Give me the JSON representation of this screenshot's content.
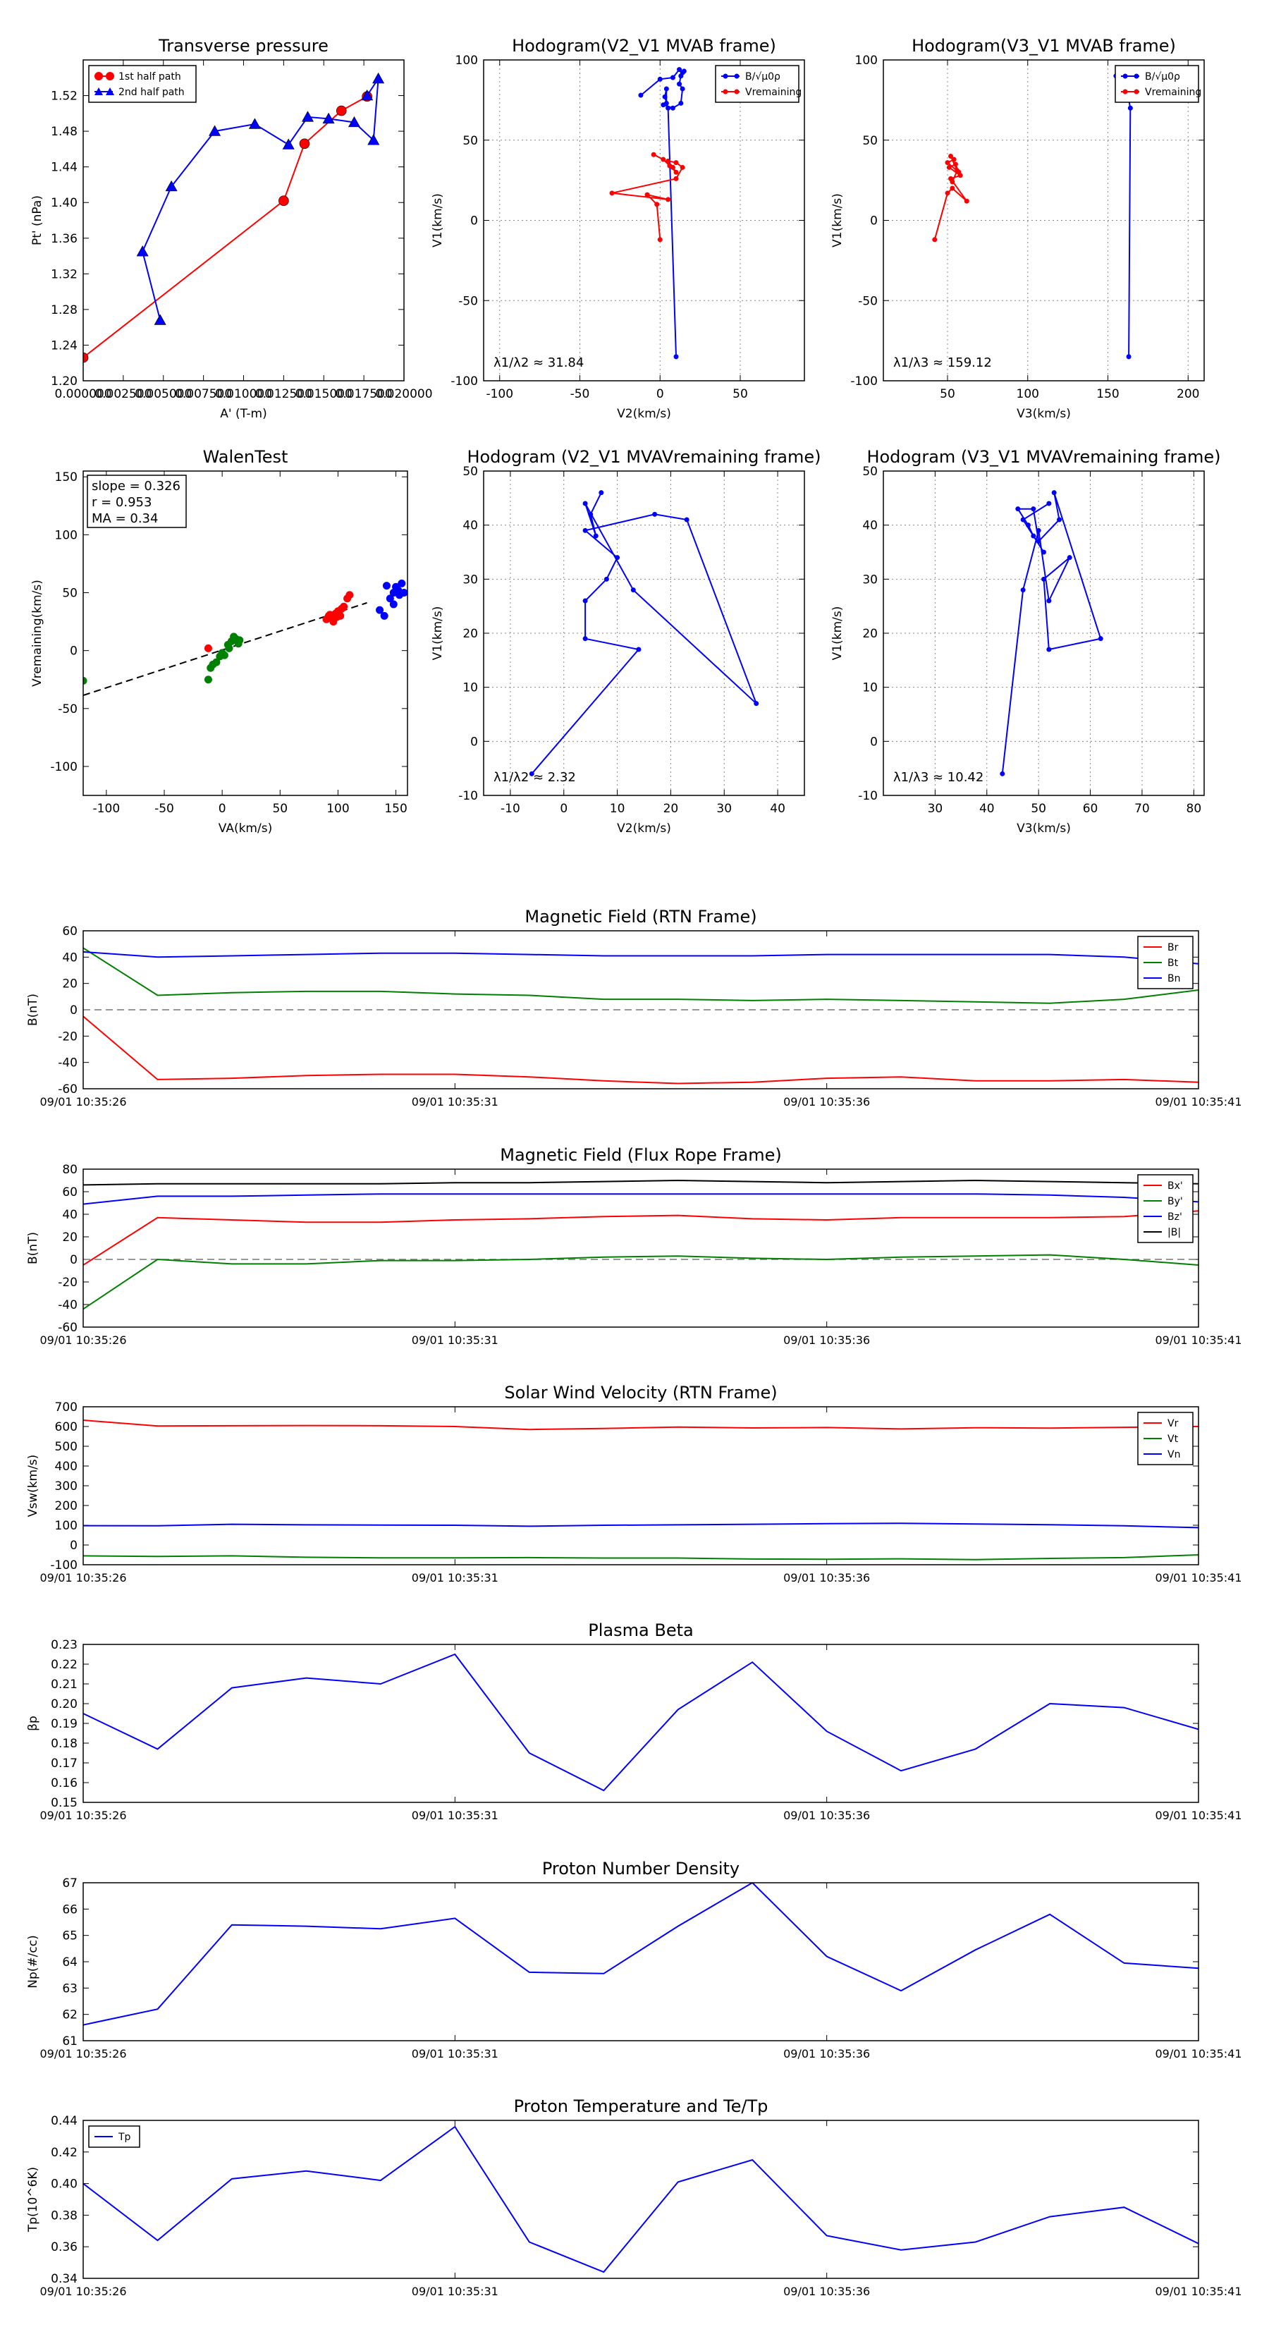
{
  "colors": {
    "red": "#ff0000",
    "green": "#008000",
    "blue": "#0000ff",
    "black": "#000000",
    "grid": "#888888"
  },
  "chart_data": [
    {
      "id": "tp",
      "type": "scatter",
      "title": "Transverse pressure",
      "xlabel": "A' (T-m)",
      "ylabel": "Pt' (nPa)",
      "xlim": [
        0,
        0.02
      ],
      "ylim": [
        1.2,
        1.56
      ],
      "xticks": [
        "0.000000",
        "0.002500",
        "0.005000",
        "0.007500",
        "0.010000",
        "0.012500",
        "0.015000",
        "0.017500",
        "0.020000"
      ],
      "yticks": [
        "1.20",
        "1.24",
        "1.28",
        "1.32",
        "1.36",
        "1.40",
        "1.44",
        "1.48",
        "1.52"
      ],
      "legend": {
        "loc": "top-left",
        "entries": [
          "1st half path",
          "2nd half path"
        ]
      },
      "series": [
        {
          "name": "1st half path",
          "color": "red",
          "marker": "circle",
          "x": [
            0.0,
            0.0125,
            0.0138,
            0.0161,
            0.0177
          ],
          "y": [
            1.226,
            1.402,
            1.466,
            1.503,
            1.519
          ]
        },
        {
          "name": "2nd half path",
          "color": "blue",
          "marker": "triangle",
          "x": [
            0.0048,
            0.0037,
            0.0055,
            0.0082,
            0.0107,
            0.0128,
            0.014,
            0.0153,
            0.0169,
            0.0181,
            0.0184,
            0.0177
          ],
          "y": [
            1.268,
            1.345,
            1.418,
            1.48,
            1.488,
            1.465,
            1.496,
            1.494,
            1.49,
            1.47,
            1.539,
            1.52
          ]
        }
      ]
    },
    {
      "id": "h1",
      "type": "line",
      "title": "Hodogram(V2_V1 MVAB frame)",
      "xlabel": "V2(km/s)",
      "ylabel": "V1(km/s)",
      "xlim": [
        -110,
        90
      ],
      "ylim": [
        -100,
        100
      ],
      "xticks": [
        "-100",
        "-50",
        "0",
        "50"
      ],
      "yticks": [
        "-100",
        "-50",
        "0",
        "50",
        "100"
      ],
      "annotation": "λ1/λ2 ≈ 31.84",
      "legend": {
        "loc": "top-right",
        "entries": [
          "B/√μ0ρ",
          "Vremaining"
        ]
      },
      "series": [
        {
          "name": "B/√μ0ρ",
          "color": "blue",
          "x": [
            10,
            5,
            3,
            4,
            4,
            2,
            8,
            13,
            14,
            12,
            13,
            15,
            14,
            12,
            8,
            0,
            -12
          ],
          "y": [
            -85,
            70,
            77,
            82,
            73,
            72,
            70,
            73,
            82,
            85,
            90,
            93,
            92,
            94,
            89,
            88,
            78
          ]
        },
        {
          "name": "Vremaining",
          "color": "red",
          "x": [
            0,
            -2,
            -8,
            5,
            -30,
            10,
            14,
            10,
            5,
            6,
            8,
            10,
            2,
            -4
          ],
          "y": [
            -12,
            10,
            16,
            13,
            17,
            26,
            33,
            36,
            37,
            34,
            33,
            30,
            38,
            41
          ]
        }
      ]
    },
    {
      "id": "h2",
      "type": "line",
      "title": "Hodogram(V3_V1 MVAB frame)",
      "xlabel": "V3(km/s)",
      "ylabel": "V1(km/s)",
      "xlim": [
        10,
        210
      ],
      "ylim": [
        -100,
        100
      ],
      "xticks": [
        "50",
        "100",
        "150",
        "200"
      ],
      "yticks": [
        "-100",
        "-50",
        "0",
        "50",
        "100"
      ],
      "annotation": "λ1/λ3 ≈ 159.12",
      "legend": {
        "loc": "top-right",
        "entries": [
          "B/√μ0ρ",
          "Vremaining"
        ]
      },
      "series": [
        {
          "name": "B/√μ0ρ",
          "color": "blue",
          "x": [
            163,
            164,
            163,
            162,
            160,
            163,
            165,
            163,
            160,
            158,
            162,
            155
          ],
          "y": [
            -85,
            70,
            75,
            80,
            85,
            88,
            90,
            93,
            92,
            89,
            87,
            90
          ]
        },
        {
          "name": "Vremaining",
          "color": "red",
          "x": [
            42,
            50,
            53,
            62,
            52,
            58,
            51,
            55,
            57,
            50,
            54,
            52,
            56,
            53
          ],
          "y": [
            -12,
            17,
            20,
            12,
            26,
            28,
            33,
            35,
            30,
            36,
            38,
            40,
            31,
            24
          ]
        }
      ]
    },
    {
      "id": "walen",
      "type": "scatter",
      "title": "WalenTest",
      "xlabel": "VA(km/s)",
      "ylabel": "Vremaining(km/s)",
      "xlim": [
        -120,
        160
      ],
      "ylim": [
        -125,
        155
      ],
      "xticks": [
        "-100",
        "-50",
        "0",
        "50",
        "100",
        "150"
      ],
      "yticks": [
        "-100",
        "-50",
        "0",
        "50",
        "100",
        "150"
      ],
      "stats": [
        "slope = 0.326",
        "r = 0.953",
        "MA = 0.34"
      ],
      "fit": {
        "slope": 0.326,
        "intercept": 0.5
      },
      "series": [
        {
          "name": "green",
          "color": "green",
          "x": [
            -120,
            -12,
            -10,
            -5,
            0,
            5,
            8,
            10,
            12,
            15,
            -2,
            2,
            -8,
            6,
            14
          ],
          "y": [
            -26,
            -25,
            -15,
            -10,
            -2,
            5,
            8,
            12,
            10,
            9,
            -5,
            -4,
            -12,
            2,
            6
          ]
        },
        {
          "name": "red",
          "color": "red",
          "x": [
            -12,
            90,
            92,
            95,
            98,
            100,
            102,
            105,
            108,
            96,
            103,
            110,
            99,
            93
          ],
          "y": [
            2,
            27,
            30,
            28,
            32,
            34,
            30,
            38,
            45,
            25,
            36,
            48,
            29,
            31
          ]
        },
        {
          "name": "blue",
          "color": "blue",
          "x": [
            136,
            140,
            145,
            148,
            150,
            152,
            155,
            148,
            153,
            142,
            157
          ],
          "y": [
            35,
            30,
            45,
            50,
            55,
            52,
            58,
            40,
            48,
            56,
            50
          ]
        }
      ]
    },
    {
      "id": "h3",
      "type": "line",
      "title": "Hodogram (V2_V1 MVAVremaining frame)",
      "xlabel": "V2(km/s)",
      "ylabel": "V1(km/s)",
      "xlim": [
        -15,
        45
      ],
      "ylim": [
        -10,
        50
      ],
      "xticks": [
        "-10",
        "0",
        "10",
        "20",
        "30",
        "40"
      ],
      "yticks": [
        "-10",
        "0",
        "10",
        "20",
        "30",
        "40",
        "50"
      ],
      "annotation": "λ1/λ2 ≈ 2.32",
      "series": [
        {
          "name": "V",
          "color": "blue",
          "x": [
            -6,
            14,
            4,
            4,
            8,
            10,
            4,
            17,
            23,
            36,
            13,
            4,
            6,
            5,
            7
          ],
          "y": [
            -6,
            17,
            19,
            26,
            30,
            34,
            39,
            42,
            41,
            7,
            28,
            44,
            38,
            42,
            46
          ]
        }
      ]
    },
    {
      "id": "h4",
      "type": "line",
      "title": "Hodogram (V3_V1 MVAVremaining frame)",
      "xlabel": "V3(km/s)",
      "ylabel": "V1(km/s)",
      "xlim": [
        20,
        82
      ],
      "ylim": [
        -10,
        50
      ],
      "xticks": [
        "30",
        "40",
        "50",
        "60",
        "70",
        "80"
      ],
      "yticks": [
        "-10",
        "0",
        "10",
        "20",
        "30",
        "40",
        "50"
      ],
      "annotation": "λ1/λ3 ≈ 10.42",
      "series": [
        {
          "name": "V",
          "color": "blue",
          "x": [
            43,
            47,
            50,
            52,
            56,
            51,
            52,
            62,
            53,
            54,
            50,
            49,
            46,
            48,
            49,
            51,
            47,
            52
          ],
          "y": [
            -6,
            28,
            39,
            26,
            34,
            30,
            17,
            19,
            46,
            41,
            37,
            43,
            43,
            40,
            38,
            35,
            41,
            44
          ]
        }
      ]
    },
    {
      "id": "mag_rtn",
      "type": "line",
      "title": "Magnetic Field (RTN Frame)",
      "ylabel": "B(nT)",
      "ylim": [
        -60,
        60
      ],
      "xticks": [
        "09/01 10:35:26",
        "09/01 10:35:31",
        "09/01 10:35:36",
        "09/01 10:35:41"
      ],
      "yticks": [
        "-60",
        "-40",
        "-20",
        "0",
        "20",
        "40",
        "60"
      ],
      "zero_line": true,
      "legend": {
        "loc": "top-right",
        "entries": [
          "Br",
          "Bt",
          "Bn"
        ]
      },
      "x": [
        26,
        27,
        28,
        29,
        30,
        31,
        32,
        33,
        34,
        35,
        36,
        37,
        38,
        39,
        40,
        41
      ],
      "series": [
        {
          "name": "Br",
          "color": "red",
          "values": [
            -5,
            -53,
            -52,
            -50,
            -49,
            -49,
            -51,
            -54,
            -56,
            -55,
            -52,
            -51,
            -54,
            -54,
            -53,
            -55
          ]
        },
        {
          "name": "Bt",
          "color": "green",
          "values": [
            47,
            11,
            13,
            14,
            14,
            12,
            11,
            8,
            8,
            7,
            8,
            7,
            6,
            5,
            8,
            15
          ]
        },
        {
          "name": "Bn",
          "color": "blue",
          "values": [
            44,
            40,
            41,
            42,
            43,
            43,
            42,
            41,
            41,
            41,
            42,
            42,
            42,
            42,
            40,
            35
          ]
        }
      ]
    },
    {
      "id": "mag_flux",
      "type": "line",
      "title": "Magnetic Field (Flux Rope Frame)",
      "ylabel": "B(nT)",
      "ylim": [
        -60,
        80
      ],
      "xticks": [
        "09/01 10:35:26",
        "09/01 10:35:31",
        "09/01 10:35:36",
        "09/01 10:35:41"
      ],
      "yticks": [
        "-60",
        "-40",
        "-20",
        "0",
        "20",
        "40",
        "60",
        "80"
      ],
      "zero_line": true,
      "legend": {
        "loc": "top-right",
        "entries": [
          "Bx'",
          "By'",
          "Bz'",
          "|B|"
        ]
      },
      "x": [
        26,
        27,
        28,
        29,
        30,
        31,
        32,
        33,
        34,
        35,
        36,
        37,
        38,
        39,
        40,
        41
      ],
      "series": [
        {
          "name": "Bx'",
          "color": "red",
          "values": [
            -5,
            37,
            35,
            33,
            33,
            35,
            36,
            38,
            39,
            36,
            35,
            37,
            37,
            37,
            38,
            43
          ]
        },
        {
          "name": "By'",
          "color": "green",
          "values": [
            -44,
            0,
            -4,
            -4,
            -1,
            -1,
            0,
            2,
            3,
            1,
            0,
            2,
            3,
            4,
            0,
            -5
          ]
        },
        {
          "name": "Bz'",
          "color": "blue",
          "values": [
            49,
            56,
            56,
            57,
            58,
            58,
            58,
            58,
            58,
            58,
            58,
            58,
            58,
            57,
            55,
            51
          ]
        },
        {
          "name": "|B|",
          "color": "black",
          "values": [
            66,
            67,
            67,
            67,
            67,
            68,
            68,
            69,
            70,
            69,
            68,
            69,
            70,
            69,
            68,
            67
          ]
        }
      ]
    },
    {
      "id": "vsw",
      "type": "line",
      "title": "Solar Wind Velocity (RTN Frame)",
      "ylabel": "Vsw(km/s)",
      "ylim": [
        -100,
        700
      ],
      "xticks": [
        "09/01 10:35:26",
        "09/01 10:35:31",
        "09/01 10:35:36",
        "09/01 10:35:41"
      ],
      "yticks": [
        "-100",
        "0",
        "100",
        "200",
        "300",
        "400",
        "500",
        "600",
        "700"
      ],
      "legend": {
        "loc": "top-right",
        "entries": [
          "Vr",
          "Vt",
          "Vn"
        ]
      },
      "x": [
        26,
        27,
        28,
        29,
        30,
        31,
        32,
        33,
        34,
        35,
        36,
        37,
        38,
        39,
        40,
        41
      ],
      "series": [
        {
          "name": "Vr",
          "color": "red",
          "values": [
            632,
            603,
            604,
            605,
            604,
            600,
            585,
            590,
            597,
            593,
            595,
            588,
            594,
            592,
            596,
            600
          ]
        },
        {
          "name": "Vt",
          "color": "green",
          "values": [
            -55,
            -58,
            -55,
            -62,
            -65,
            -65,
            -64,
            -66,
            -66,
            -71,
            -72,
            -70,
            -74,
            -68,
            -64,
            -50
          ]
        },
        {
          "name": "Vn",
          "color": "blue",
          "values": [
            98,
            97,
            105,
            102,
            101,
            100,
            95,
            100,
            102,
            105,
            108,
            110,
            106,
            103,
            97,
            88
          ]
        }
      ]
    },
    {
      "id": "beta",
      "type": "line",
      "title": "Plasma Beta",
      "ylabel": "βp",
      "ylim": [
        0.15,
        0.23
      ],
      "xticks": [
        "09/01 10:35:26",
        "09/01 10:35:31",
        "09/01 10:35:36",
        "09/01 10:35:41"
      ],
      "yticks": [
        "0.15",
        "0.16",
        "0.17",
        "0.18",
        "0.19",
        "0.20",
        "0.21",
        "0.22",
        "0.23"
      ],
      "x": [
        26,
        27,
        28,
        29,
        30,
        31,
        32,
        33,
        34,
        35,
        36,
        37,
        38,
        39,
        40,
        41
      ],
      "series": [
        {
          "name": "beta",
          "color": "blue",
          "values": [
            0.195,
            0.177,
            0.208,
            0.213,
            0.21,
            0.225,
            0.175,
            0.156,
            0.197,
            0.221,
            0.186,
            0.166,
            0.177,
            0.2,
            0.198,
            0.187
          ]
        }
      ]
    },
    {
      "id": "np",
      "type": "line",
      "title": "Proton Number Density",
      "ylabel": "Np(#/cc)",
      "ylim": [
        61,
        67
      ],
      "xticks": [
        "09/01 10:35:26",
        "09/01 10:35:31",
        "09/01 10:35:36",
        "09/01 10:35:41"
      ],
      "yticks": [
        "61",
        "62",
        "63",
        "64",
        "65",
        "66",
        "67"
      ],
      "x": [
        26,
        27,
        28,
        29,
        30,
        31,
        32,
        33,
        34,
        35,
        36,
        37,
        38,
        39,
        40,
        41
      ],
      "series": [
        {
          "name": "Np",
          "color": "blue",
          "values": [
            61.6,
            62.2,
            65.4,
            65.35,
            65.25,
            65.65,
            63.6,
            63.55,
            65.35,
            67.0,
            64.2,
            62.9,
            64.45,
            65.8,
            63.95,
            63.75
          ]
        }
      ]
    },
    {
      "id": "tp_temp",
      "type": "line",
      "title": "Proton Temperature and Te/Tp",
      "ylabel": "Tp(10^6K)",
      "ylim": [
        0.34,
        0.44
      ],
      "xticks": [
        "09/01 10:35:26",
        "09/01 10:35:31",
        "09/01 10:35:36",
        "09/01 10:35:41"
      ],
      "yticks": [
        "0.34",
        "0.36",
        "0.38",
        "0.40",
        "0.42",
        "0.44"
      ],
      "legend": {
        "loc": "top-left",
        "entries": [
          "Tp"
        ]
      },
      "x": [
        26,
        27,
        28,
        29,
        30,
        31,
        32,
        33,
        34,
        35,
        36,
        37,
        38,
        39,
        40,
        41
      ],
      "series": [
        {
          "name": "Tp",
          "color": "blue",
          "values": [
            0.4,
            0.364,
            0.403,
            0.408,
            0.402,
            0.436,
            0.363,
            0.344,
            0.401,
            0.415,
            0.367,
            0.358,
            0.363,
            0.379,
            0.385,
            0.362
          ]
        }
      ]
    }
  ]
}
